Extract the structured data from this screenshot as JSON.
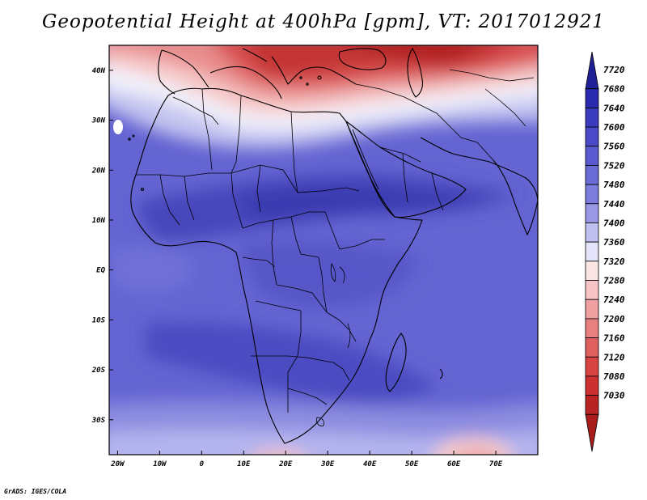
{
  "title": "Geopotential Height at 400hPa [gpm], VT: 2017012921",
  "footer": "GrADS: IGES/COLA",
  "map": {
    "lon_range": [
      -22,
      80
    ],
    "lat_range": [
      -37,
      45
    ],
    "x_ticks": [
      "20W",
      "10W",
      "0",
      "10E",
      "20E",
      "30E",
      "40E",
      "50E",
      "60E",
      "70E"
    ],
    "x_tick_values": [
      -20,
      -10,
      0,
      10,
      20,
      30,
      40,
      50,
      60,
      70
    ],
    "y_ticks": [
      "40N",
      "30N",
      "20N",
      "10N",
      "EQ",
      "10S",
      "20S",
      "30S"
    ],
    "y_tick_values": [
      40,
      30,
      20,
      10,
      0,
      -10,
      -20,
      -30
    ]
  },
  "colorbar": {
    "labels": [
      "7720",
      "7680",
      "7640",
      "7600",
      "7560",
      "7520",
      "7480",
      "7440",
      "7400",
      "7360",
      "7320",
      "7280",
      "7240",
      "7200",
      "7160",
      "7120",
      "7080",
      "7030"
    ],
    "colors": [
      "#1f1f96",
      "#2a2aae",
      "#3b3bbe",
      "#4a4ac8",
      "#5a5ad0",
      "#6b6bd6",
      "#7c7cdc",
      "#9898e4",
      "#c0c0f0",
      "#e4e4fa",
      "#fbe4e4",
      "#f6c4c4",
      "#f0a0a0",
      "#e88080",
      "#e06060",
      "#d84444",
      "#cc3030",
      "#b82424",
      "#a81c1c"
    ]
  }
}
